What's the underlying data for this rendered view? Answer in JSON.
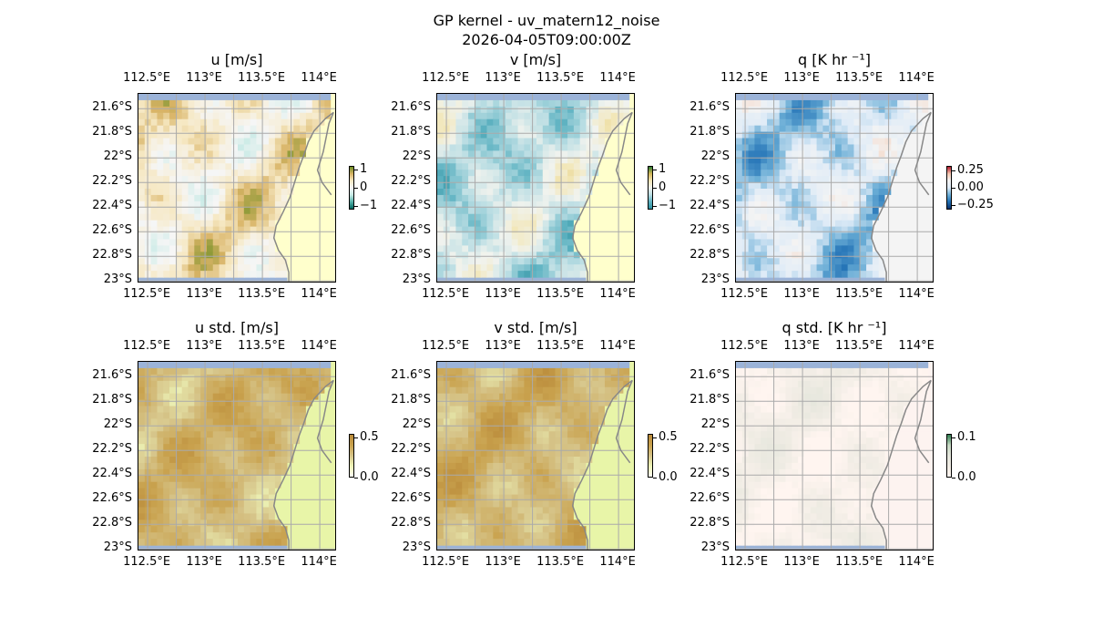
{
  "figure": {
    "title_line1": "GP kernel - uv_matern12_noise",
    "title_line2": "2026-04-05T09:00:00Z"
  },
  "axes": {
    "lon_ticks": [
      "112.5°E",
      "113°E",
      "113.5°E",
      "114°E"
    ],
    "lat_ticks": [
      "21.6°S",
      "21.8°S",
      "22°S",
      "22.2°S",
      "22.4°S",
      "22.6°S",
      "22.8°S",
      "23°S"
    ]
  },
  "colors": {
    "ocean": "#9bb3d8",
    "gridline": "#aaaaaa",
    "coastline": "#888888"
  },
  "chart_data": [
    {
      "type": "heatmap",
      "title": "u [m/s]",
      "lon_range": [
        112.42,
        114.15
      ],
      "lat_range": [
        -23.02,
        -21.48
      ],
      "colorbar": {
        "ticks": [
          "1",
          "0",
          "−1"
        ],
        "tick_values": [
          1,
          0,
          -1
        ],
        "range": [
          -1.2,
          1.2
        ]
      },
      "palette": [
        "#01665e",
        "#5ab4ac",
        "#c7eae5",
        "#f6f6f6",
        "#f6e8c3",
        "#d8b365",
        "#6b8e23"
      ],
      "land_color": "#ffffcc",
      "field_mean": 0.3
    },
    {
      "type": "heatmap",
      "title": "v [m/s]",
      "lon_range": [
        112.42,
        114.15
      ],
      "lat_range": [
        -23.02,
        -21.48
      ],
      "colorbar": {
        "ticks": [
          "1",
          "0",
          "−1"
        ],
        "tick_values": [
          1,
          0,
          -1
        ],
        "range": [
          -1.2,
          1.2
        ]
      },
      "palette": [
        "#2c8f9e",
        "#5fb3c2",
        "#b9dde3",
        "#f1f3ee",
        "#f2e6b5",
        "#d6b85a",
        "#2e7d32"
      ],
      "land_color": "#ffffcc",
      "field_mean": -0.3
    },
    {
      "type": "heatmap",
      "title": "q [K hr ⁻¹]",
      "lon_range": [
        112.42,
        114.15
      ],
      "lat_range": [
        -23.02,
        -21.48
      ],
      "colorbar": {
        "ticks": [
          "0.25",
          "0.00",
          "−0.25"
        ],
        "tick_values": [
          0.25,
          0,
          -0.25
        ],
        "range": [
          -0.32,
          0.32
        ]
      },
      "palette": [
        "#08306b",
        "#2171b5",
        "#6baed6",
        "#deebf7",
        "#f4f4f4",
        "#f5c8b0",
        "#b2182b"
      ],
      "land_color": "#f4f4f4",
      "field_mean": -0.02
    },
    {
      "type": "heatmap",
      "title": "u std. [m/s]",
      "lon_range": [
        112.42,
        114.15
      ],
      "lat_range": [
        -23.02,
        -21.48
      ],
      "colorbar": {
        "ticks": [
          "0.5",
          "0.0"
        ],
        "tick_values": [
          0.5,
          0.0
        ],
        "range": [
          0,
          0.55
        ]
      },
      "palette": [
        "#fffff0",
        "#eef5b8",
        "#d6c489",
        "#c9a24e",
        "#b98a3a"
      ],
      "land_color": "#e8f5a8",
      "field_mean": 0.33
    },
    {
      "type": "heatmap",
      "title": "v std. [m/s]",
      "lon_range": [
        112.42,
        114.15
      ],
      "lat_range": [
        -23.02,
        -21.48
      ],
      "colorbar": {
        "ticks": [
          "0.5",
          "0.0"
        ],
        "tick_values": [
          0.5,
          0.0
        ],
        "range": [
          0,
          0.55
        ]
      },
      "palette": [
        "#fffff0",
        "#eef5b8",
        "#d6c489",
        "#c9a24e",
        "#b98a3a"
      ],
      "land_color": "#e8f5a8",
      "field_mean": 0.34
    },
    {
      "type": "heatmap",
      "title": "q std. [K hr ⁻¹]",
      "lon_range": [
        112.42,
        114.15
      ],
      "lat_range": [
        -23.02,
        -21.48
      ],
      "colorbar": {
        "ticks": [
          "0.1",
          "0.0"
        ],
        "tick_values": [
          0.1,
          0.0
        ],
        "range": [
          0,
          0.11
        ]
      },
      "palette": [
        "#fff5f0",
        "#f0ece4",
        "#e4e6dc",
        "#c7d9c4",
        "#2e7d4f"
      ],
      "land_color": "#fdf3f0",
      "field_mean": 0.015
    }
  ]
}
